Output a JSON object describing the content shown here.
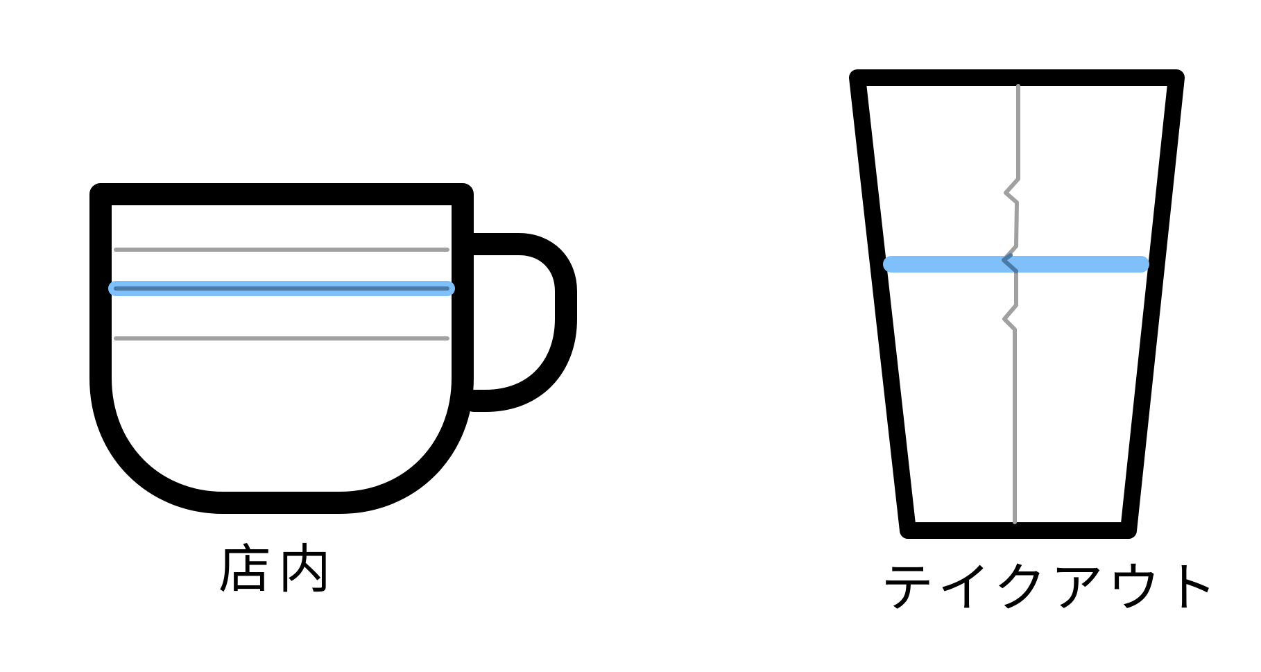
{
  "labels": {
    "in_store": "店内",
    "takeout": "テイクアウト"
  },
  "colors": {
    "outline": "#000000",
    "guide_line": "#a0a0a0",
    "fill_line": "#80c0fa",
    "fill_line_overlap": "#4a7aa8"
  },
  "icons": {
    "mug": "mug-icon",
    "cup": "takeout-cup-icon"
  }
}
